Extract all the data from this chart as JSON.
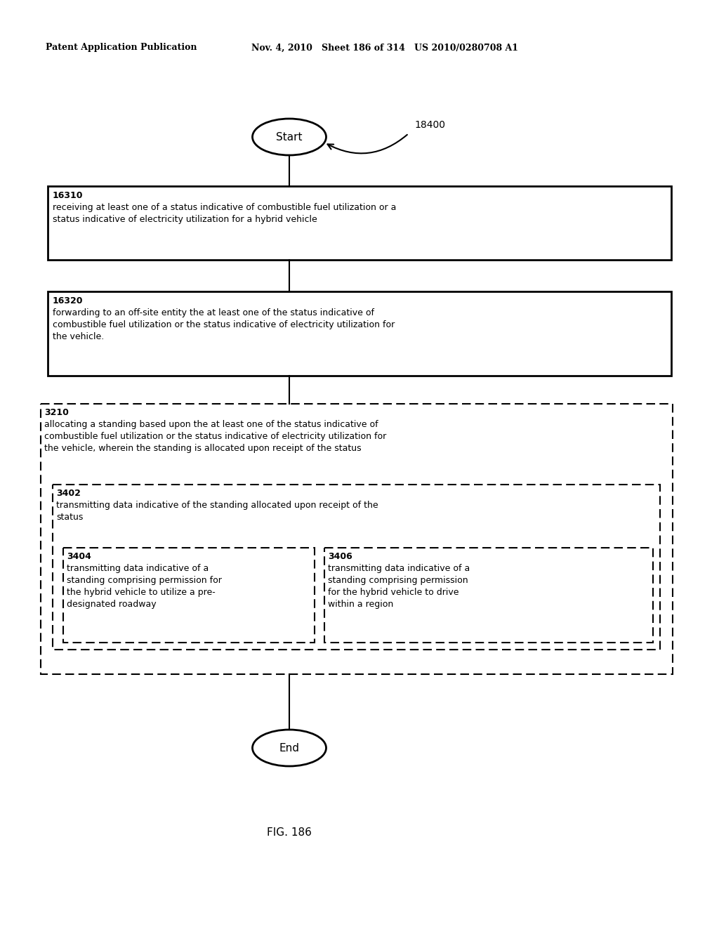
{
  "title_left": "Patent Application Publication",
  "title_right": "Nov. 4, 2010   Sheet 186 of 314   US 2010/0280708 A1",
  "fig_label": "FIG. 186",
  "diagram_label": "18400",
  "start_label": "Start",
  "end_label": "End",
  "box1_id": "16310",
  "box1_text": "receiving at least one of a status indicative of combustible fuel utilization or a\nstatus indicative of electricity utilization for a hybrid vehicle",
  "box2_id": "16320",
  "box2_text": "forwarding to an off-site entity the at least one of the status indicative of\ncombustible fuel utilization or the status indicative of electricity utilization for\nthe vehicle.",
  "outer_dashed_id": "3210",
  "outer_dashed_text": "allocating a standing based upon the at least one of the status indicative of\ncombustible fuel utilization or the status indicative of electricity utilization for\nthe vehicle, wherein the standing is allocated upon receipt of the status",
  "mid_dashed_id": "3402",
  "mid_dashed_text": "transmitting data indicative of the standing allocated upon receipt of the\nstatus",
  "inner_left_id": "3404",
  "inner_left_text": "transmitting data indicative of a\nstanding comprising permission for\nthe hybrid vehicle to utilize a pre-\ndesignated roadway",
  "inner_right_id": "3406",
  "inner_right_text": "transmitting data indicative of a\nstanding comprising permission\nfor the hybrid vehicle to drive\nwithin a region",
  "bg_color": "#ffffff",
  "text_color": "#000000",
  "box_edge_color": "#000000",
  "dashed_edge_color": "#000000",
  "header_fontsize": 9,
  "body_fontsize": 9,
  "id_fontsize": 9
}
